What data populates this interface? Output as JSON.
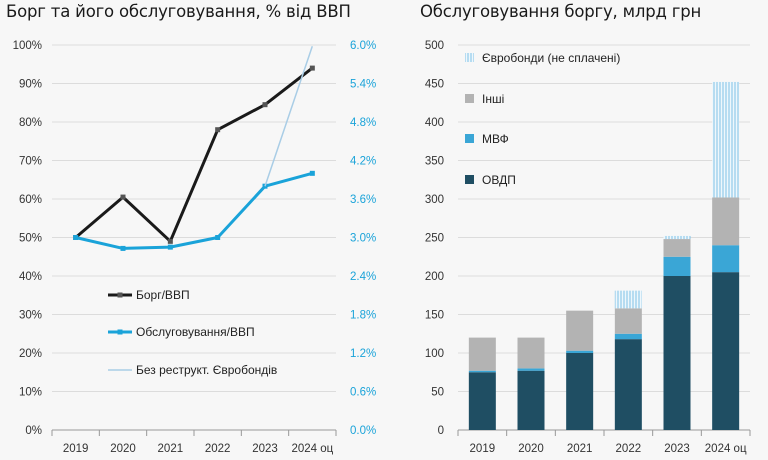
{
  "colors": {
    "black_series": "#1a1a1a",
    "blue_series": "#1aa3d9",
    "light_series": "#a9cde6",
    "ovdp": "#1f4e63",
    "mvf": "#3aa6d6",
    "other": "#b3b3b3",
    "euro_unpaid": "#bfe0f2",
    "axis_blue": "#1aa3d9"
  },
  "chart_data": [
    {
      "type": "line",
      "title": "Борг та його обслуговування, % від ВВП",
      "categories": [
        "2019",
        "2020",
        "2021",
        "2022",
        "2023",
        "2024 оц"
      ],
      "y_left": {
        "ticks": [
          "0%",
          "10%",
          "20%",
          "30%",
          "40%",
          "50%",
          "60%",
          "70%",
          "80%",
          "90%",
          "100%"
        ],
        "ylim": [
          0,
          100
        ]
      },
      "y_right": {
        "ticks": [
          "0.0%",
          "0.6%",
          "1.2%",
          "1.8%",
          "2.4%",
          "3.0%",
          "3.6%",
          "4.2%",
          "4.8%",
          "5.4%",
          "6.0%"
        ],
        "ylim": [
          0,
          6
        ]
      },
      "grid": true,
      "series": [
        {
          "name": "Борг/ВВП",
          "axis": "left",
          "color": "#1a1a1a",
          "values": [
            50,
            60.5,
            49,
            78,
            84.5,
            94
          ]
        },
        {
          "name": "Обслуговування/ВВП",
          "axis": "right",
          "color": "#1aa3d9",
          "values": [
            3.0,
            2.83,
            2.85,
            3.0,
            3.8,
            4.0
          ]
        },
        {
          "name": "Без реструкт. Євробондів",
          "axis": "right",
          "color": "#a9cde6",
          "values": [
            null,
            null,
            null,
            null,
            3.8,
            5.98
          ]
        }
      ],
      "legend": "bottom-left"
    },
    {
      "type": "bar",
      "stacked": true,
      "title": "Обслуговування боргу, млрд грн",
      "categories": [
        "2019",
        "2020",
        "2021",
        "2022",
        "2023",
        "2024 оц"
      ],
      "ylim": [
        0,
        500
      ],
      "y_ticks": [
        "0",
        "50",
        "100",
        "150",
        "200",
        "250",
        "300",
        "350",
        "400",
        "450",
        "500"
      ],
      "grid": true,
      "series": [
        {
          "name": "ОВДП",
          "color": "#1f4e63",
          "values": [
            75,
            77,
            100,
            118,
            200,
            205
          ]
        },
        {
          "name": "МВФ",
          "color": "#3aa6d6",
          "values": [
            2,
            3,
            3,
            7,
            25,
            35
          ]
        },
        {
          "name": "Інші",
          "color": "#b3b3b3",
          "values": [
            43,
            40,
            52,
            33,
            23,
            62
          ]
        },
        {
          "name": "Євробонди (не сплачені)",
          "color": "#bfe0f2",
          "values": [
            0,
            0,
            0,
            23,
            4,
            150
          ]
        }
      ],
      "legend": "top-left"
    }
  ]
}
